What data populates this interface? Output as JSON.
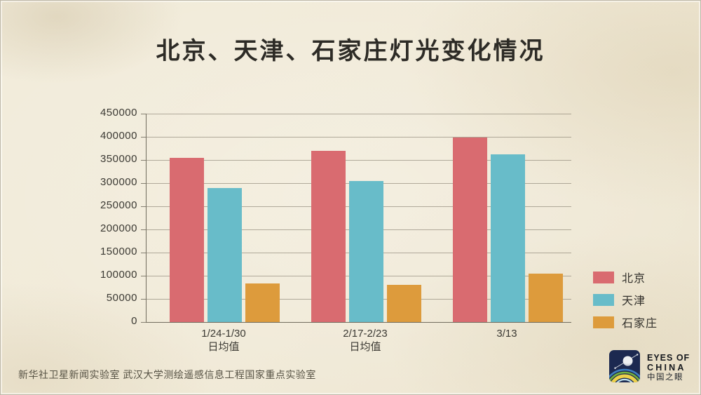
{
  "title": "北京、天津、石家庄灯光变化情况",
  "chart_data": {
    "type": "bar",
    "title": "北京、天津、石家庄灯光变化情况",
    "categories": [
      {
        "lines": [
          "1/24-1/30",
          "日均值"
        ]
      },
      {
        "lines": [
          "2/17-2/23",
          "日均值"
        ]
      },
      {
        "lines": [
          "3/13"
        ]
      }
    ],
    "series": [
      {
        "name": "北京",
        "color": "#d96b70",
        "values": [
          355000,
          370000,
          398000
        ]
      },
      {
        "name": "天津",
        "color": "#68bcc9",
        "values": [
          290000,
          305000,
          362000
        ]
      },
      {
        "name": "石家庄",
        "color": "#dd9b3c",
        "values": [
          84000,
          80000,
          104000
        ]
      }
    ],
    "xlabel": "",
    "ylabel": "",
    "ylim": [
      0,
      450000
    ],
    "y_ticks": [
      "0",
      "50000",
      "100000",
      "150000",
      "200000",
      "250000",
      "300000",
      "350000",
      "400000",
      "450000"
    ],
    "grid": true,
    "legend_position": "right"
  },
  "colors": {
    "background_paper": "#f0e9d7",
    "axis": "#716c5e",
    "text": "#2d2b26"
  },
  "footer": {
    "credit": "新华社卫星新闻实验室  武汉大学测绘遥感信息工程国家重点实验室"
  },
  "logo": {
    "icon": "satellite-globe-icon",
    "line1": "EYES OF",
    "line2": "CHINA",
    "line3": "中国之眼"
  }
}
